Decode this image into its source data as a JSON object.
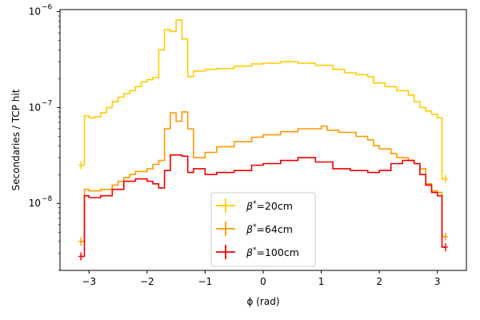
{
  "chart_data": {
    "type": "line",
    "step": true,
    "xlabel": "ϕ (rad)",
    "ylabel": "Secondaries / TCP hit",
    "xlim": [
      -3.5,
      3.5
    ],
    "ylim": [
      2e-09,
      1.05e-06
    ],
    "yscale": "log",
    "xticks": [
      -3,
      -2,
      -1,
      0,
      1,
      2,
      3
    ],
    "xtick_labels": [
      "−3",
      "−2",
      "−1",
      "0",
      "1",
      "2",
      "3"
    ],
    "yticks": [
      1e-08,
      1e-07,
      1e-06
    ],
    "ytick_labels": [
      "10",
      "10",
      "10"
    ],
    "ytick_exps": [
      "−8",
      "−7",
      "−6"
    ],
    "legend_position": "lower-center",
    "series": [
      {
        "name_base": "β",
        "name_sup": "*",
        "name_rest": "=20cm",
        "color": "#FFCC00",
        "x": [
          -3.14,
          -3.08,
          -3.0,
          -2.9,
          -2.8,
          -2.7,
          -2.6,
          -2.5,
          -2.4,
          -2.3,
          -2.2,
          -2.1,
          -2.0,
          -1.9,
          -1.8,
          -1.7,
          -1.6,
          -1.5,
          -1.4,
          -1.3,
          -1.2,
          -1.0,
          -0.8,
          -0.5,
          -0.2,
          0.0,
          0.3,
          0.6,
          0.9,
          1.2,
          1.4,
          1.6,
          1.8,
          1.9,
          2.1,
          2.3,
          2.5,
          2.6,
          2.7,
          2.8,
          2.9,
          3.0,
          3.08,
          3.14
        ],
        "y": [
          2.5e-08,
          8.2e-08,
          7.8e-08,
          8e-08,
          8.8e-08,
          1e-07,
          1.15e-07,
          1.28e-07,
          1.4e-07,
          1.5e-07,
          1.65e-07,
          1.85e-07,
          1.95e-07,
          2.05e-07,
          4e-07,
          6.5e-07,
          6.2e-07,
          8.2e-07,
          5.2e-07,
          2.1e-07,
          2.4e-07,
          2.5e-07,
          2.55e-07,
          2.7e-07,
          2.85e-07,
          2.9e-07,
          3e-07,
          2.9e-07,
          2.75e-07,
          2.5e-07,
          2.3e-07,
          2.2e-07,
          2.1e-07,
          1.8e-07,
          1.65e-07,
          1.5e-07,
          1.35e-07,
          1.15e-07,
          1e-07,
          9.2e-08,
          8.5e-08,
          7.8e-08,
          1.8e-08,
          1.8e-08
        ]
      },
      {
        "name_base": "β",
        "name_sup": "*",
        "name_rest": "=64cm",
        "color": "#FF9900",
        "x": [
          -3.14,
          -3.08,
          -3.0,
          -2.8,
          -2.6,
          -2.5,
          -2.4,
          -2.3,
          -2.2,
          -2.0,
          -1.9,
          -1.8,
          -1.7,
          -1.6,
          -1.5,
          -1.4,
          -1.3,
          -1.2,
          -1.0,
          -0.8,
          -0.5,
          -0.2,
          0.0,
          0.3,
          0.6,
          1.0,
          1.1,
          1.3,
          1.6,
          1.8,
          1.9,
          2.0,
          2.2,
          2.3,
          2.5,
          2.6,
          2.7,
          2.8,
          2.9,
          3.0,
          3.08,
          3.14
        ],
        "y": [
          4e-09,
          1.4e-08,
          1.35e-08,
          1.4e-08,
          1.55e-08,
          1.7e-08,
          1.85e-08,
          2e-08,
          2.15e-08,
          2.3e-08,
          2.55e-08,
          2.8e-08,
          6e-08,
          8.8e-08,
          7.2e-08,
          9e-08,
          6e-08,
          3e-08,
          3.4e-08,
          3.9e-08,
          4.4e-08,
          4.9e-08,
          5.2e-08,
          5.6e-08,
          6e-08,
          6.4e-08,
          5.8e-08,
          5.5e-08,
          5e-08,
          4.6e-08,
          4e-08,
          3.7e-08,
          3.3e-08,
          3e-08,
          2.8e-08,
          2.6e-08,
          2.3e-08,
          1.6e-08,
          1.35e-08,
          1.3e-08,
          4.5e-09,
          4.5e-09
        ]
      },
      {
        "name_base": "β",
        "name_sup": "*",
        "name_rest": "=100cm",
        "color": "#EE0000",
        "x": [
          -3.14,
          -3.08,
          -3.0,
          -2.8,
          -2.6,
          -2.4,
          -2.2,
          -2.0,
          -1.9,
          -1.8,
          -1.7,
          -1.6,
          -1.4,
          -1.3,
          -1.2,
          -1.0,
          -0.8,
          -0.5,
          -0.2,
          0.0,
          0.3,
          0.6,
          0.9,
          1.2,
          1.5,
          1.8,
          2.0,
          2.2,
          2.4,
          2.6,
          2.7,
          2.8,
          2.9,
          3.0,
          3.08,
          3.14
        ],
        "y": [
          2.8e-09,
          1.2e-08,
          1.15e-08,
          1.2e-08,
          1.4e-08,
          1.7e-08,
          1.8e-08,
          1.7e-08,
          1.6e-08,
          1.45e-08,
          2.2e-08,
          3.2e-08,
          3.1e-08,
          2.1e-08,
          2.3e-08,
          2e-08,
          2.1e-08,
          2.2e-08,
          2.5e-08,
          2.6e-08,
          2.8e-08,
          3e-08,
          2.7e-08,
          2.3e-08,
          2.2e-08,
          2.1e-08,
          2.2e-08,
          2.6e-08,
          2.8e-08,
          2.6e-08,
          2e-08,
          1.55e-08,
          1.3e-08,
          1.2e-08,
          3.5e-09,
          3.5e-09
        ]
      }
    ]
  }
}
